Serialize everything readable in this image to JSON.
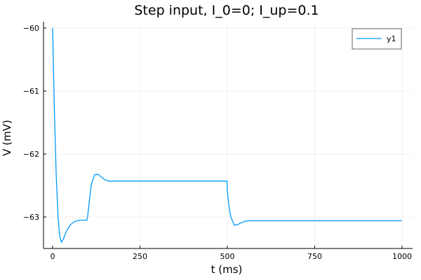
{
  "chart_data": {
    "type": "line",
    "title": "Step input, I_0=0; I_up=0.1",
    "xlabel": "t (ms)",
    "ylabel": "V (mV)",
    "xlim": [
      0,
      1000
    ],
    "ylim": [
      -63.4,
      -60
    ],
    "x_ticks": [
      0,
      250,
      500,
      750,
      1000
    ],
    "x_tick_labels": [
      "0",
      "250",
      "500",
      "750",
      "1000"
    ],
    "y_ticks": [
      -60,
      -61,
      -62,
      -63
    ],
    "y_tick_labels": [
      "−60",
      "−61",
      "−62",
      "−63"
    ],
    "grid": true,
    "legend_position": "top-right",
    "series": [
      {
        "name": "y1",
        "color": "#009af9",
        "x": [
          0,
          5,
          10,
          15,
          20,
          25,
          30,
          40,
          50,
          60,
          70,
          80,
          90,
          98,
          100,
          105,
          110,
          120,
          130,
          140,
          150,
          160,
          170,
          180,
          200,
          300,
          400,
          499,
          500,
          505,
          510,
          520,
          530,
          540,
          550,
          560,
          580,
          600,
          700,
          800,
          900,
          1000
        ],
        "y": [
          -60.0,
          -61.3,
          -62.3,
          -62.95,
          -63.3,
          -63.4,
          -63.36,
          -63.22,
          -63.13,
          -63.08,
          -63.06,
          -63.05,
          -63.05,
          -63.05,
          -63.0,
          -62.75,
          -62.5,
          -62.33,
          -62.32,
          -62.37,
          -62.41,
          -62.43,
          -62.43,
          -62.43,
          -62.43,
          -62.43,
          -62.43,
          -62.43,
          -62.6,
          -62.85,
          -63.0,
          -63.13,
          -63.12,
          -63.09,
          -63.07,
          -63.06,
          -63.06,
          -63.06,
          -63.06,
          -63.06,
          -63.06,
          -63.06
        ]
      }
    ]
  }
}
